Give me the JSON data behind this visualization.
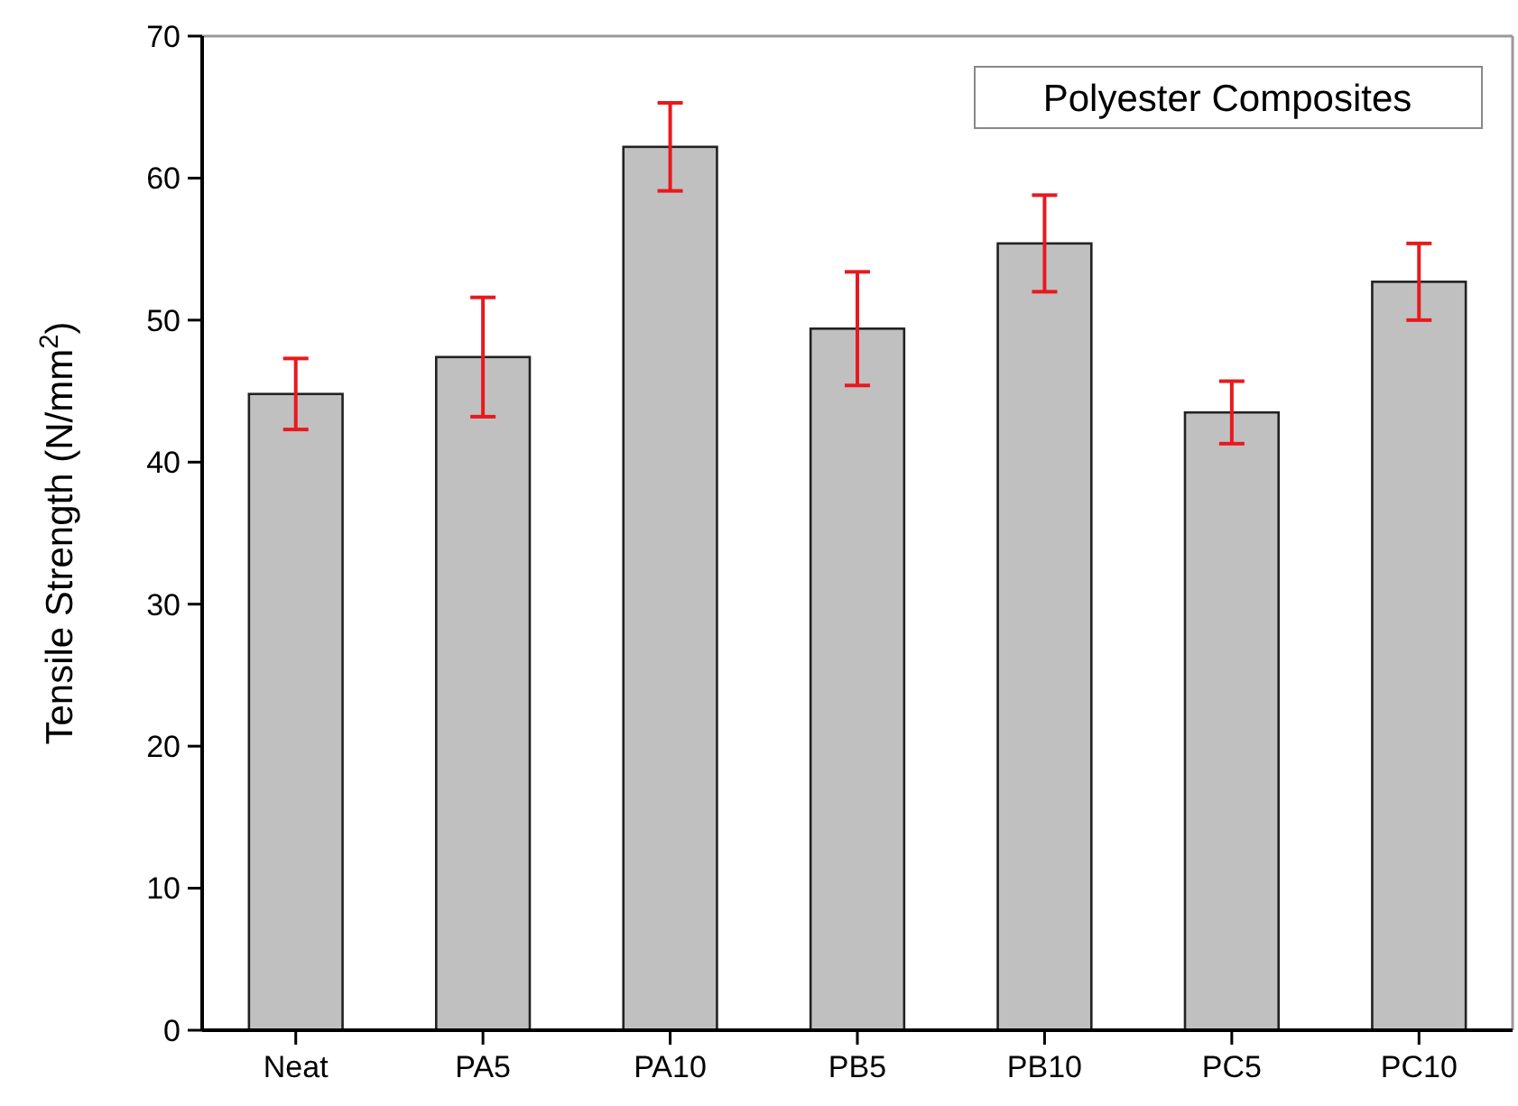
{
  "chart_data": {
    "type": "bar",
    "ylabel": "Tensile Strength (N/mm$^{2}$)",
    "annotations": [
      "Polyester Composites"
    ],
    "categories": [
      "Neat",
      "PA5",
      "PA10",
      "PB5",
      "PB10",
      "PC5",
      "PC10"
    ],
    "values": [
      44.8,
      47.4,
      62.2,
      49.4,
      55.4,
      43.5,
      52.7
    ],
    "errors": [
      2.5,
      4.2,
      3.1,
      4.0,
      3.4,
      2.2,
      2.7
    ],
    "color": "#c0c0c0",
    "ylim": [
      0,
      70
    ],
    "yticks": [
      0,
      10,
      20,
      30,
      40,
      50,
      60,
      70
    ],
    "grid": false
  }
}
